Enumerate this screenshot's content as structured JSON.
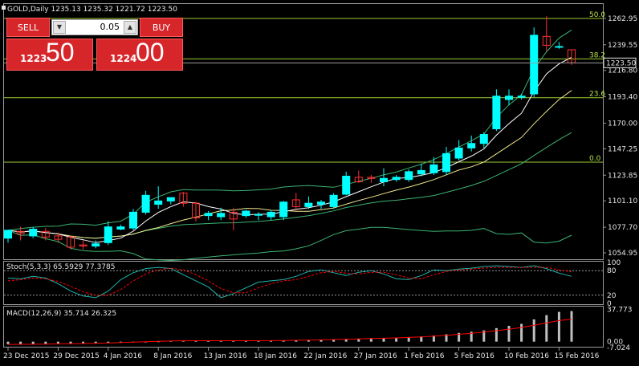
{
  "header": {
    "title": "GOLD,Daily  1235.13 1235.32 1221.72 1223.50"
  },
  "one_click_trading": {
    "sell_label": "SELL",
    "buy_label": "BUY",
    "lot_value": "0.05",
    "sell_price_small": "1223",
    "sell_price_big": "50",
    "buy_price_small": "1224",
    "buy_price_big": "00"
  },
  "colors": {
    "bull_candle": "#00ffff",
    "bear_candle": "#ff3030",
    "fib_line": "#9acd32",
    "bollinger": "#3cb371",
    "ma_fast": "#ffffff",
    "ma_slow": "#f0e68c",
    "stoch_main": "#20b2aa",
    "stoch_signal": "#ff0000",
    "macd_hist": "#c0c0c0",
    "macd_signal": "#ff0000"
  },
  "chart_data": [
    {
      "type": "candlestick",
      "title": "GOLD,Daily",
      "header_values": {
        "open": 1235.13,
        "high": 1235.32,
        "low": 1221.72,
        "close": 1223.5
      },
      "ylim": [
        1050,
        1275
      ],
      "y_ticks": [
        "1262.95",
        "1239.55",
        "1216.80",
        "1193.40",
        "1170.00",
        "1147.25",
        "1123.85",
        "1101.10",
        "1077.70",
        "1054.95"
      ],
      "current_price_label": "1223.50",
      "x_labels": [
        "23 Dec 2015",
        "29 Dec 2015",
        "4 Jan 2016",
        "8 Jan 2016",
        "13 Jan 2016",
        "18 Jan 2016",
        "22 Jan 2016",
        "27 Jan 2016",
        "1 Feb 2016",
        "5 Feb 2016",
        "10 Feb 2016",
        "15 Feb 2016"
      ],
      "x_label_index": [
        0,
        4,
        8,
        12,
        16,
        20,
        24,
        28,
        32,
        36,
        40,
        44
      ],
      "fibonacci": [
        {
          "label": "50.0",
          "price": 1262.9
        },
        {
          "label": "38.2",
          "price": 1227.0
        },
        {
          "label": "23.6",
          "price": 1192.6
        },
        {
          "label": "0.0",
          "price": 1135.4
        }
      ],
      "candles": [
        {
          "o": 1068,
          "h": 1075,
          "l": 1064,
          "c": 1075
        },
        {
          "o": 1074,
          "h": 1078,
          "l": 1066,
          "c": 1072
        },
        {
          "o": 1070,
          "h": 1078,
          "l": 1068,
          "c": 1076
        },
        {
          "o": 1074,
          "h": 1077,
          "l": 1066,
          "c": 1069
        },
        {
          "o": 1070,
          "h": 1073,
          "l": 1064,
          "c": 1067
        },
        {
          "o": 1069,
          "h": 1070,
          "l": 1058,
          "c": 1060
        },
        {
          "o": 1062,
          "h": 1066,
          "l": 1058,
          "c": 1061
        },
        {
          "o": 1061,
          "h": 1066,
          "l": 1059,
          "c": 1063
        },
        {
          "o": 1064,
          "h": 1083,
          "l": 1062,
          "c": 1078
        },
        {
          "o": 1076,
          "h": 1080,
          "l": 1075,
          "c": 1078
        },
        {
          "o": 1077,
          "h": 1094,
          "l": 1075,
          "c": 1091
        },
        {
          "o": 1091,
          "h": 1110,
          "l": 1089,
          "c": 1106
        },
        {
          "o": 1098,
          "h": 1114,
          "l": 1094,
          "c": 1101
        },
        {
          "o": 1101,
          "h": 1104,
          "l": 1098,
          "c": 1104
        },
        {
          "o": 1108,
          "h": 1109,
          "l": 1096,
          "c": 1099
        },
        {
          "o": 1099,
          "h": 1100,
          "l": 1083,
          "c": 1086
        },
        {
          "o": 1088,
          "h": 1092,
          "l": 1084,
          "c": 1090
        },
        {
          "o": 1087,
          "h": 1095,
          "l": 1084,
          "c": 1090
        },
        {
          "o": 1091,
          "h": 1095,
          "l": 1075,
          "c": 1085
        },
        {
          "o": 1088,
          "h": 1093,
          "l": 1086,
          "c": 1092
        },
        {
          "o": 1089,
          "h": 1091,
          "l": 1084,
          "c": 1089
        },
        {
          "o": 1087,
          "h": 1093,
          "l": 1084,
          "c": 1091
        },
        {
          "o": 1087,
          "h": 1101,
          "l": 1084,
          "c": 1100
        },
        {
          "o": 1102,
          "h": 1108,
          "l": 1092,
          "c": 1096
        },
        {
          "o": 1096,
          "h": 1105,
          "l": 1094,
          "c": 1099
        },
        {
          "o": 1098,
          "h": 1102,
          "l": 1094,
          "c": 1100
        },
        {
          "o": 1096,
          "h": 1108,
          "l": 1094,
          "c": 1106
        },
        {
          "o": 1107,
          "h": 1127,
          "l": 1106,
          "c": 1123
        },
        {
          "o": 1122,
          "h": 1128,
          "l": 1117,
          "c": 1118
        },
        {
          "o": 1122,
          "h": 1124,
          "l": 1117,
          "c": 1121
        },
        {
          "o": 1118,
          "h": 1130,
          "l": 1114,
          "c": 1121
        },
        {
          "o": 1120,
          "h": 1124,
          "l": 1118,
          "c": 1122
        },
        {
          "o": 1120,
          "h": 1129,
          "l": 1118,
          "c": 1127
        },
        {
          "o": 1125,
          "h": 1134,
          "l": 1123,
          "c": 1128
        },
        {
          "o": 1126,
          "h": 1140,
          "l": 1124,
          "c": 1133
        },
        {
          "o": 1127,
          "h": 1149,
          "l": 1124,
          "c": 1143
        },
        {
          "o": 1139,
          "h": 1155,
          "l": 1137,
          "c": 1148
        },
        {
          "o": 1148,
          "h": 1159,
          "l": 1145,
          "c": 1152
        },
        {
          "o": 1152,
          "h": 1162,
          "l": 1148,
          "c": 1160
        },
        {
          "o": 1165,
          "h": 1200,
          "l": 1163,
          "c": 1194
        },
        {
          "o": 1191,
          "h": 1200,
          "l": 1186,
          "c": 1194
        },
        {
          "o": 1193,
          "h": 1196,
          "l": 1191,
          "c": 1194
        },
        {
          "o": 1196,
          "h": 1255,
          "l": 1193,
          "c": 1248
        },
        {
          "o": 1247,
          "h": 1265,
          "l": 1234,
          "c": 1239
        },
        {
          "o": 1238,
          "h": 1242,
          "l": 1236,
          "c": 1238
        },
        {
          "o": 1235.13,
          "h": 1235.32,
          "l": 1221.72,
          "c": 1223.5
        }
      ]
    },
    {
      "type": "line",
      "title": "Stoch(5,3,3) 65.5929 77.3785",
      "ylim": [
        0,
        100
      ],
      "y_ticks": [
        "100",
        "80",
        "20",
        "0"
      ],
      "levels": [
        80,
        20
      ],
      "series": [
        {
          "name": "main",
          "values": [
            62,
            60,
            66,
            62,
            48,
            30,
            18,
            14,
            30,
            58,
            75,
            85,
            88,
            85,
            70,
            55,
            40,
            14,
            24,
            38,
            52,
            55,
            58,
            66,
            78,
            82,
            75,
            68,
            76,
            80,
            72,
            60,
            58,
            68,
            82,
            80,
            84,
            86,
            90,
            92,
            90,
            88,
            92,
            85,
            74,
            66
          ]
        },
        {
          "name": "signal",
          "values": [
            55,
            58,
            62,
            60,
            54,
            42,
            28,
            20,
            20,
            34,
            55,
            72,
            82,
            86,
            82,
            70,
            55,
            36,
            26,
            26,
            38,
            48,
            55,
            58,
            66,
            75,
            78,
            74,
            72,
            76,
            76,
            70,
            62,
            60,
            70,
            78,
            82,
            84,
            86,
            88,
            88,
            88,
            88,
            88,
            82,
            77
          ]
        }
      ]
    },
    {
      "type": "bar",
      "title": "MACD(12,26,9) 35.714 26.325",
      "ylim": [
        -5,
        40
      ],
      "y_ticks": [
        "37.773",
        "0.00",
        "-7.024"
      ],
      "series": [
        {
          "name": "histogram",
          "values": [
            -3,
            -3,
            -3,
            -2.8,
            -2.6,
            -2.5,
            -2.3,
            -2,
            -1.6,
            -1.2,
            -0.8,
            -0.3,
            0.4,
            0.9,
            1.2,
            1.2,
            1.1,
            1.1,
            1.0,
            1.0,
            1.1,
            1.2,
            1.5,
            1.8,
            2.0,
            2.3,
            2.7,
            3.2,
            3.6,
            4.0,
            4.4,
            4.8,
            5.4,
            6.2,
            7.2,
            8.6,
            10.2,
            11.6,
            13.2,
            15.8,
            18.5,
            20.8,
            26,
            31,
            34.8,
            35.714
          ]
        },
        {
          "name": "signal",
          "values": [
            -3.2,
            -3.1,
            -3,
            -2.8,
            -2.6,
            -2.4,
            -2.2,
            -1.9,
            -1.5,
            -1.1,
            -0.6,
            -0.1,
            0.4,
            0.8,
            1.0,
            1.1,
            1.1,
            1.1,
            1.1,
            1.1,
            1.1,
            1.2,
            1.4,
            1.6,
            1.8,
            2.1,
            2.4,
            2.8,
            3.2,
            3.6,
            4.0,
            4.4,
            4.9,
            5.6,
            6.4,
            7.4,
            8.6,
            9.8,
            11.2,
            12.8,
            14.6,
            16.6,
            19.2,
            22,
            24.6,
            26.325
          ]
        }
      ]
    }
  ]
}
